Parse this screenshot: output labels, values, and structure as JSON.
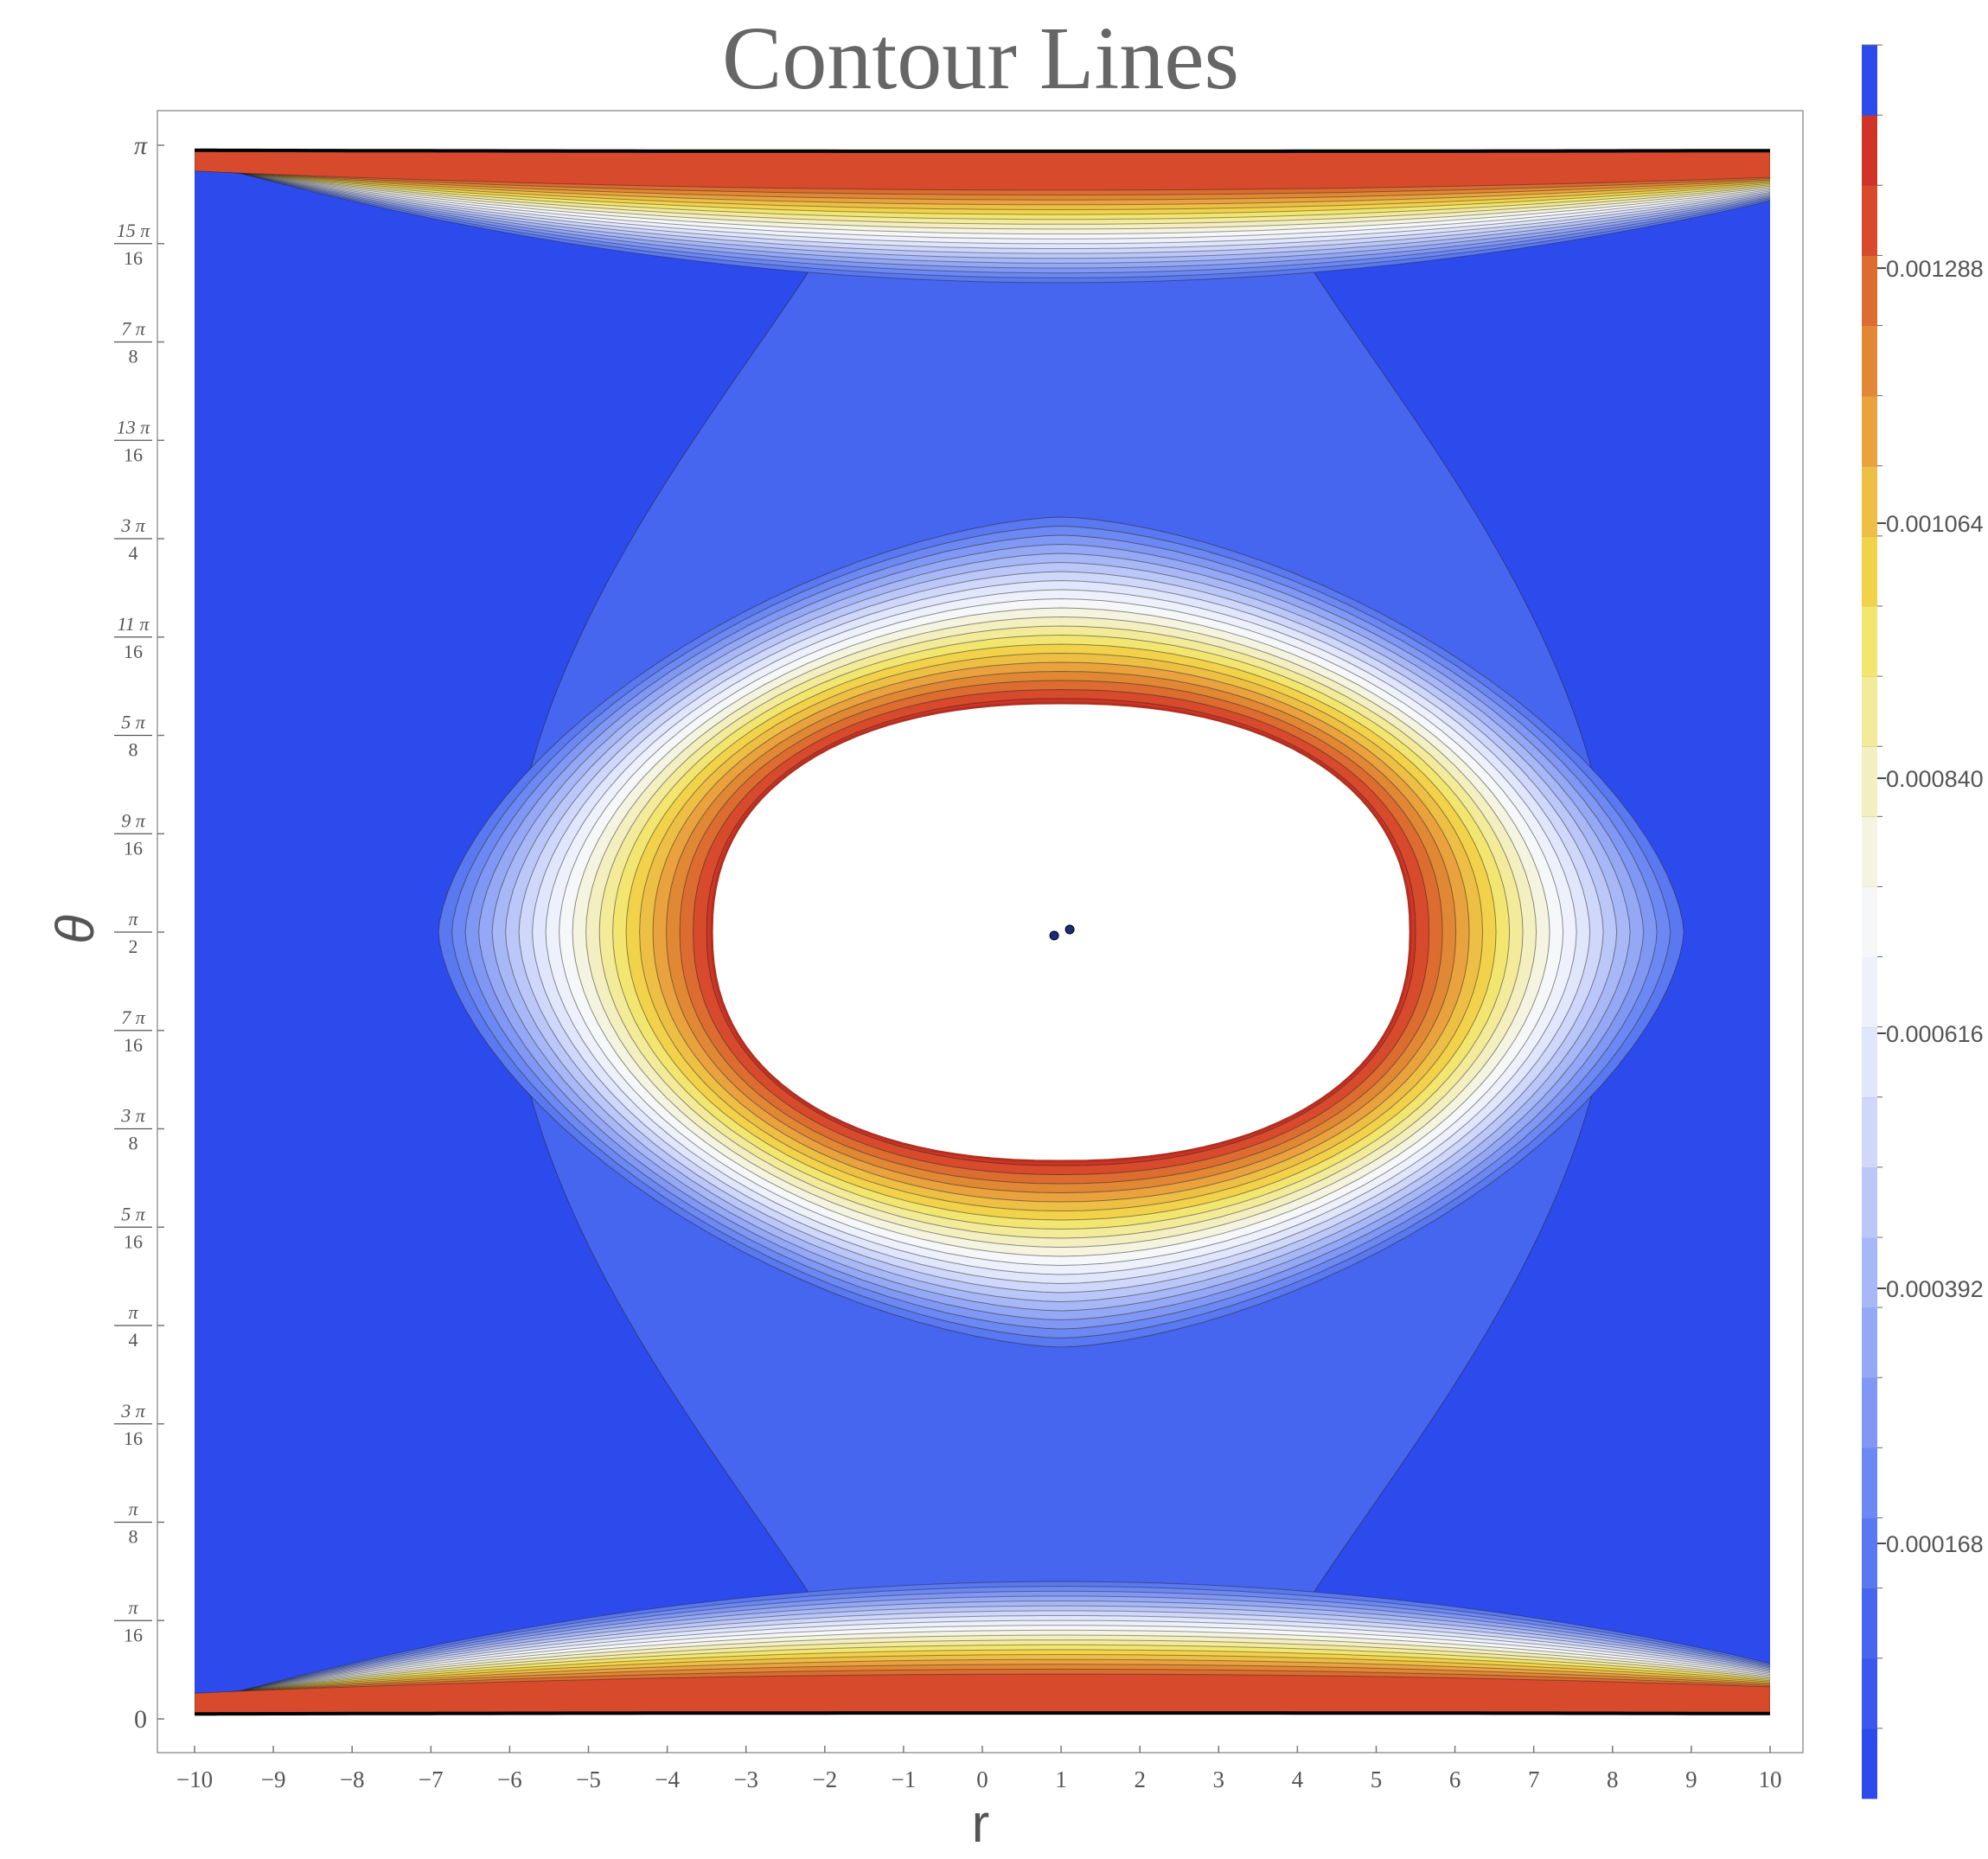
{
  "chart_data": {
    "type": "contour",
    "title": "Contour Lines",
    "xlabel": "r",
    "ylabel": "θ",
    "xlim": [
      -10,
      10
    ],
    "ylim": [
      0,
      3.14159265
    ],
    "x_ticks": [
      "−10",
      "−9",
      "−8",
      "−7",
      "−6",
      "−5",
      "−4",
      "−3",
      "−2",
      "−1",
      "0",
      "1",
      "2",
      "3",
      "4",
      "5",
      "6",
      "7",
      "8",
      "9",
      "10"
    ],
    "y_ticks": [
      {
        "num": "",
        "den": "",
        "plain": "0"
      },
      {
        "num": "π",
        "den": "16"
      },
      {
        "num": "π",
        "den": "8"
      },
      {
        "num": "3 π",
        "den": "16"
      },
      {
        "num": "π",
        "den": "4"
      },
      {
        "num": "5 π",
        "den": "16"
      },
      {
        "num": "3 π",
        "den": "8"
      },
      {
        "num": "7 π",
        "den": "16"
      },
      {
        "num": "π",
        "den": "2"
      },
      {
        "num": "9 π",
        "den": "16"
      },
      {
        "num": "5 π",
        "den": "8"
      },
      {
        "num": "11 π",
        "den": "16"
      },
      {
        "num": "3 π",
        "den": "4"
      },
      {
        "num": "13 π",
        "den": "16"
      },
      {
        "num": "7 π",
        "den": "8"
      },
      {
        "num": "15 π",
        "den": "16"
      },
      {
        "num": "",
        "den": "",
        "plain": "π"
      }
    ],
    "center": {
      "r": 1,
      "theta": 1.5708
    },
    "colorbar": {
      "labels": [
        "0.000168",
        "0.000392",
        "0.000616",
        "0.000840",
        "0.001064",
        "0.001288"
      ],
      "label_values": [
        0.000168,
        0.000392,
        0.000616,
        0.00084,
        0.001064,
        0.001288
      ],
      "range": [
        0.0,
        0.001456
      ],
      "step": 5.6e-05,
      "colors": [
        "#2d4bed",
        "#3b58ee",
        "#4766ef",
        "#5a78f0",
        "#6c88f2",
        "#8097f4",
        "#95a8f5",
        "#a8b8f7",
        "#bbc7f8",
        "#cfd7fa",
        "#e0e6fb",
        "#eef1fc",
        "#f6f7f8",
        "#f5f4e0",
        "#f4efc0",
        "#f3ea9a",
        "#f2e670",
        "#f2d24a",
        "#eebf45",
        "#e9a23d",
        "#e18835",
        "#dc6c30",
        "#d84a2c",
        "#d03426",
        "#2d4bed"
      ]
    },
    "grid": false,
    "legend": "right"
  }
}
